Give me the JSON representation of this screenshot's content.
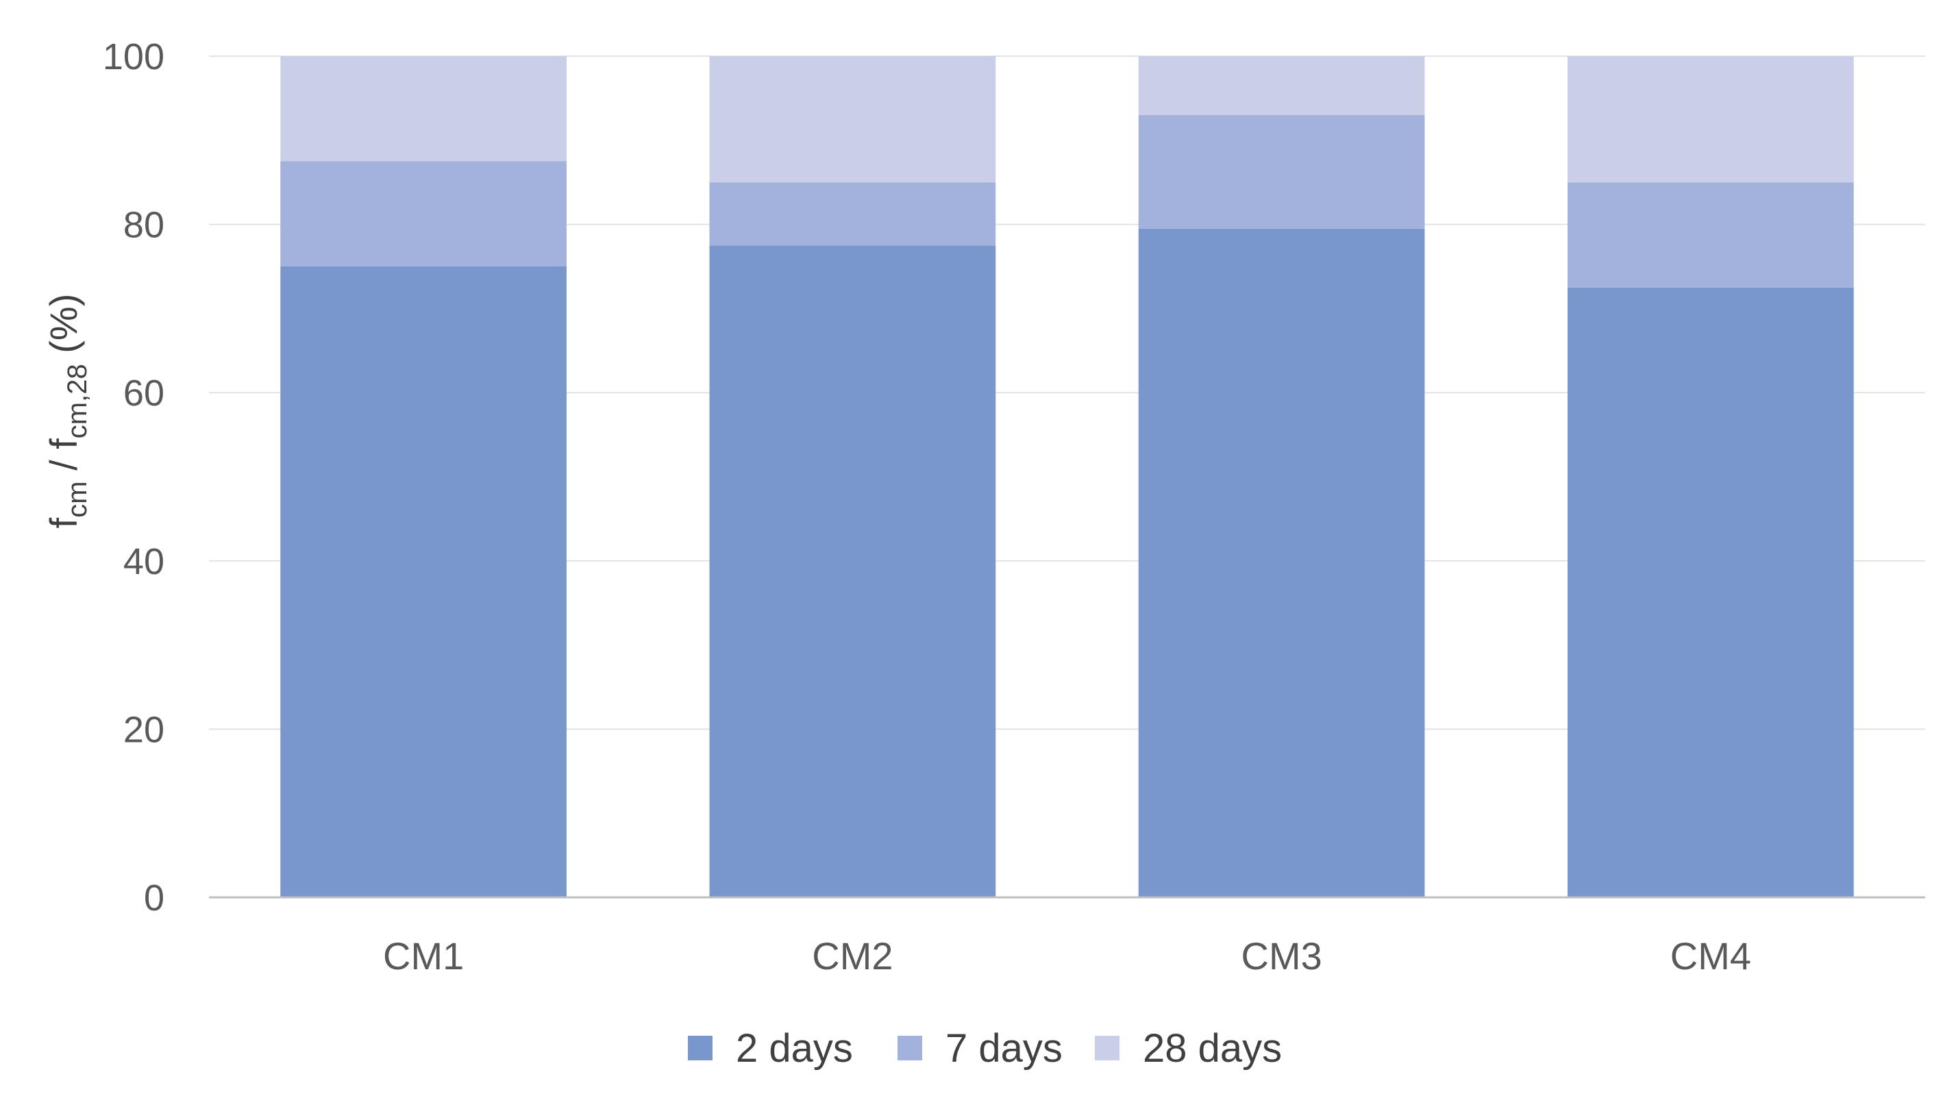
{
  "chart_data": {
    "type": "bar",
    "stacked": true,
    "categories": [
      "CM1",
      "CM2",
      "CM3",
      "CM4"
    ],
    "series": [
      {
        "name": "2 days",
        "values": [
          75,
          77.5,
          79.5,
          72.5
        ],
        "color": "#7a97cc"
      },
      {
        "name": "7 days",
        "values": [
          12.5,
          7.5,
          13.5,
          12.5
        ],
        "color": "#a2b2dc"
      },
      {
        "name": "28 days",
        "values": [
          12.5,
          15,
          7,
          15
        ],
        "color": "#cacfe8"
      }
    ],
    "ylabel": {
      "main1": "f",
      "sub1": "cm",
      "mid": " / f",
      "sub2": "cm,28",
      "tail": " (%)"
    },
    "ylim": [
      0,
      100
    ],
    "yticks": [
      "0",
      "20",
      "40",
      "60",
      "80",
      "100"
    ],
    "grid": true,
    "legend_position": "bottom"
  }
}
